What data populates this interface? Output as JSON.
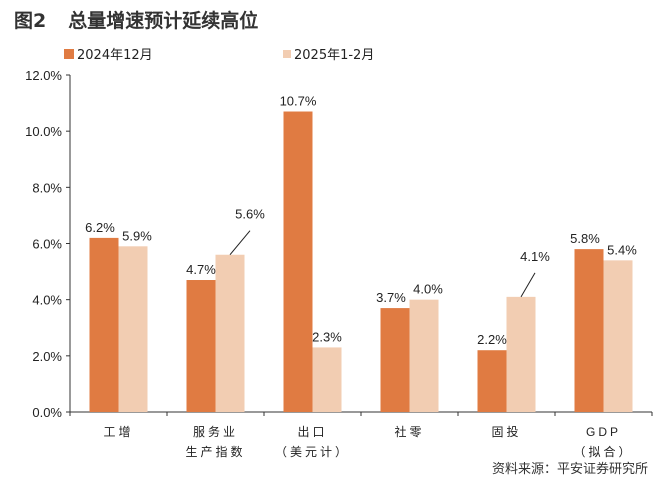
{
  "title": {
    "figure_no": "图2",
    "text": "总量增速预计延续高位"
  },
  "source": "资料来源：平安证券研究所",
  "chart_data": {
    "type": "bar",
    "categories": [
      [
        "工增"
      ],
      [
        "服务业",
        "生产指数"
      ],
      [
        "出口",
        "（美元计）"
      ],
      [
        "社零"
      ],
      [
        "固投"
      ],
      [
        "GDP",
        "（拟合）"
      ]
    ],
    "series": [
      {
        "name": "2024年12月",
        "color": "#E07B42",
        "values": [
          6.2,
          4.7,
          10.7,
          3.7,
          2.2,
          5.8
        ]
      },
      {
        "name": "2025年1-2月",
        "color": "#F2CDB2",
        "values": [
          5.9,
          5.6,
          2.3,
          4.0,
          4.1,
          5.4
        ]
      }
    ],
    "ylim": [
      0,
      12
    ],
    "yticks": [
      "0.0%",
      "2.0%",
      "4.0%",
      "6.0%",
      "8.0%",
      "10.0%",
      "12.0%"
    ],
    "data_labels": [
      [
        "6.2%",
        "4.7%",
        "10.7%",
        "3.7%",
        "2.2%",
        "5.8%"
      ],
      [
        "5.9%",
        "5.6%",
        "2.3%",
        "4.0%",
        "4.1%",
        "5.4%"
      ]
    ],
    "grid": false,
    "legend": "top"
  }
}
